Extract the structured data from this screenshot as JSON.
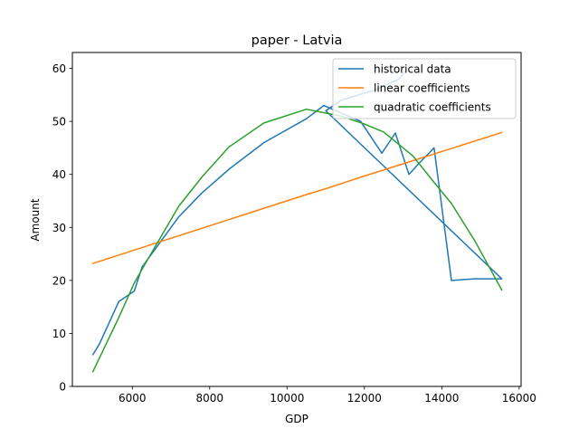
{
  "chart_data": {
    "type": "line",
    "title": "paper - Latvia",
    "xlabel": "GDP",
    "ylabel": "Amount",
    "xlim": [
      4450,
      16050
    ],
    "ylim": [
      0,
      63
    ],
    "xticks": [
      6000,
      8000,
      10000,
      12000,
      14000,
      16000
    ],
    "yticks": [
      0,
      10,
      20,
      30,
      40,
      50,
      60
    ],
    "grid": false,
    "legend_position": "top-right",
    "series": [
      {
        "name": "historical data",
        "color": "#1f77b4",
        "points": [
          [
            4980,
            6
          ],
          [
            5150,
            8
          ],
          [
            5650,
            16
          ],
          [
            6050,
            18
          ],
          [
            6250,
            22.5
          ],
          [
            7200,
            32
          ],
          [
            7800,
            36.5
          ],
          [
            8500,
            41
          ],
          [
            9400,
            46
          ],
          [
            10500,
            50.5
          ],
          [
            10950,
            53
          ],
          [
            11900,
            50
          ],
          [
            12450,
            44
          ],
          [
            12800,
            47.8
          ],
          [
            13150,
            40
          ],
          [
            13400,
            42
          ],
          [
            13800,
            45
          ],
          [
            14250,
            20
          ],
          [
            14850,
            20.3
          ],
          [
            15550,
            20.3
          ],
          [
            11000,
            52
          ],
          [
            11400,
            54
          ],
          [
            12300,
            56
          ],
          [
            12900,
            58
          ],
          [
            13050,
            59.5
          ]
        ]
      },
      {
        "name": "linear coefficients",
        "color": "#ff7f0e",
        "points": [
          [
            4980,
            23.2
          ],
          [
            10500,
            36.2
          ],
          [
            11000,
            37.3
          ],
          [
            12000,
            39.7
          ],
          [
            13000,
            42
          ],
          [
            15550,
            47.9
          ]
        ]
      },
      {
        "name": "quadratic coefficients",
        "color": "#2ca02c",
        "points": [
          [
            4980,
            2.8
          ],
          [
            5650,
            13
          ],
          [
            6050,
            19.5
          ],
          [
            6400,
            24
          ],
          [
            7200,
            34
          ],
          [
            7800,
            39.5
          ],
          [
            8500,
            45.2
          ],
          [
            9400,
            49.7
          ],
          [
            10500,
            52.3
          ],
          [
            11400,
            51
          ],
          [
            12000,
            49.5
          ],
          [
            12500,
            48
          ],
          [
            13250,
            43.5
          ],
          [
            13800,
            38.5
          ],
          [
            14250,
            34.5
          ],
          [
            14850,
            27.5
          ],
          [
            15550,
            18.2
          ]
        ]
      }
    ]
  }
}
